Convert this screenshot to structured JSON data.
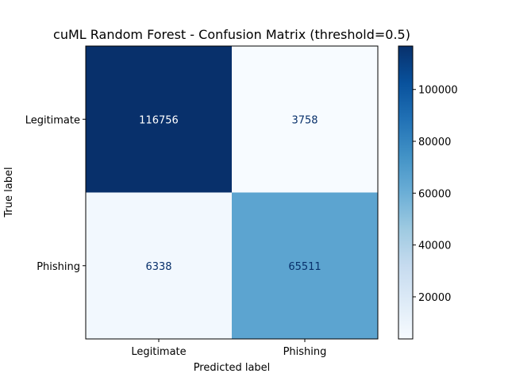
{
  "chart_data": {
    "type": "heatmap",
    "title": "cuML Random Forest - Confusion Matrix (threshold=0.5)",
    "xlabel": "Predicted label",
    "ylabel": "True label",
    "x_categories": [
      "Legitimate",
      "Phishing"
    ],
    "y_categories": [
      "Legitimate",
      "Phishing"
    ],
    "values": [
      [
        116756,
        3758
      ],
      [
        6338,
        65511
      ]
    ],
    "colormap": "Blues",
    "colorbar": {
      "ticks": [
        20000,
        40000,
        60000,
        80000,
        100000
      ],
      "tick_labels": [
        "20000",
        "40000",
        "60000",
        "80000",
        "100000"
      ],
      "range": [
        3758,
        116756
      ]
    },
    "grid": false
  }
}
